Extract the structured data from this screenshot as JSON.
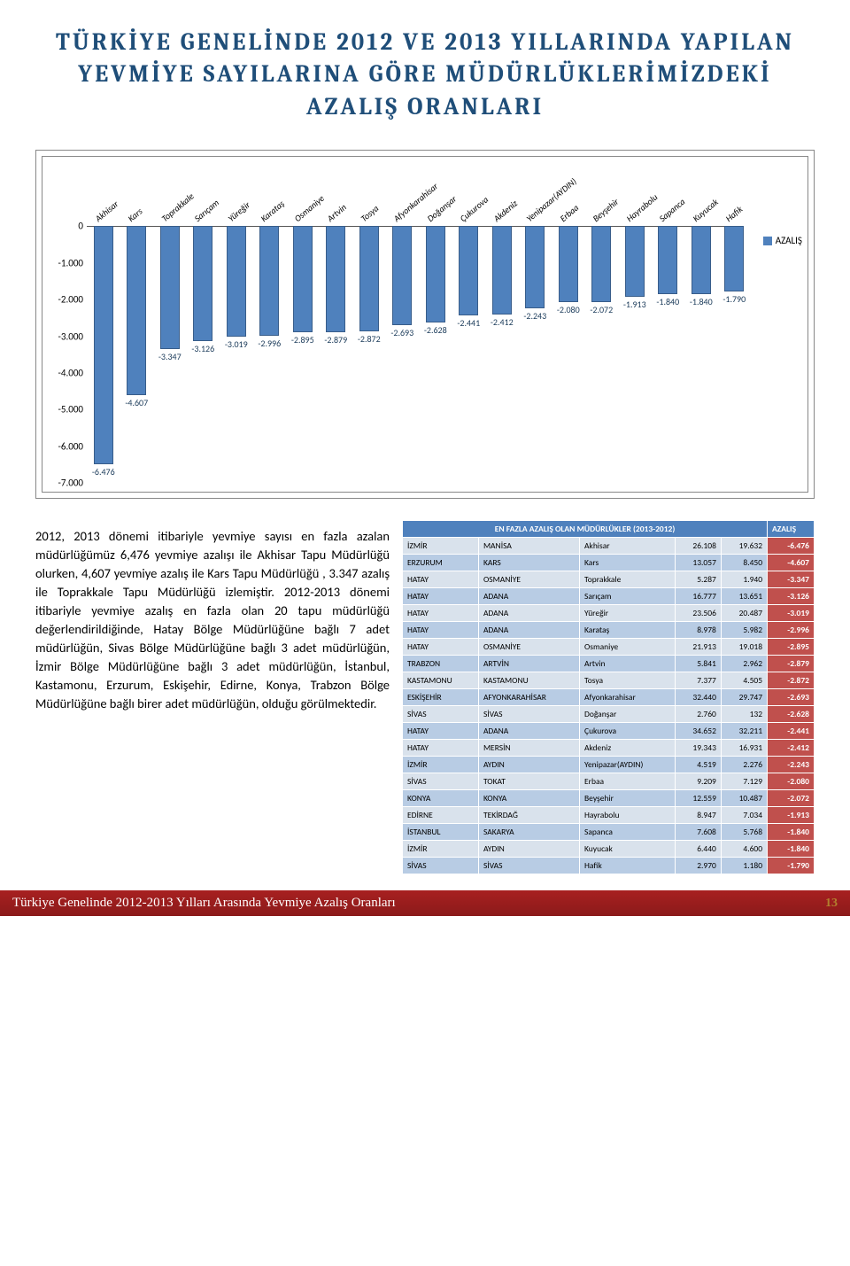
{
  "title": "TÜRKİYE GENELİNDE 2012 VE 2013 YILLARINDA YAPILAN YEVMİYE SAYILARINA GÖRE  MÜDÜRLÜKLERİMİZDEKİ AZALIŞ ORANLARI",
  "chart": {
    "type": "bar",
    "legend_label": "AZALIŞ",
    "bar_color": "#4f81bd",
    "bar_border": "#385d8a",
    "yticks": [
      {
        "v": 0,
        "label": "0"
      },
      {
        "v": -1000,
        "label": "-1.000"
      },
      {
        "v": -2000,
        "label": "-2.000"
      },
      {
        "v": -3000,
        "label": "-3.000"
      },
      {
        "v": -4000,
        "label": "-4.000"
      },
      {
        "v": -5000,
        "label": "-5.000"
      },
      {
        "v": -6000,
        "label": "-6.000"
      },
      {
        "v": -7000,
        "label": "-7.000"
      }
    ],
    "ymin": -7000,
    "categories": [
      "Akhisar",
      "Kars",
      "Toprakkale",
      "Sarıçam",
      "Yüreğir",
      "Karataş",
      "Osmaniye",
      "Artvin",
      "Tosya",
      "Afyonkarahisar",
      "Doğanşar",
      "Çukurova",
      "Akdeniz",
      "Yenipazar(AYDIN)",
      "Erbaa",
      "Beyşehir",
      "Hayrabolu",
      "Sapanca",
      "Kuyucak",
      "Hafik"
    ],
    "values": [
      -6476,
      -4607,
      -3347,
      -3126,
      -3019,
      -2996,
      -2895,
      -2879,
      -2872,
      -2693,
      -2628,
      -2441,
      -2412,
      -2243,
      -2080,
      -2072,
      -1913,
      -1840,
      -1840,
      -1790
    ],
    "value_labels": [
      "-6.476",
      "-4.607",
      "-3.347",
      "-3.126",
      "-3.019",
      "-2.996",
      "-2.895",
      "-2.879",
      "-2.872",
      "-2.693",
      "-2.628",
      "-2.441",
      "-2.412",
      "-2.243",
      "-2.080",
      "-2.072",
      "-1.913",
      "-1.840",
      "-1.840",
      "-1.790"
    ]
  },
  "paragraph": "2012, 2013 dönemi itibariyle yevmiye sayısı  en fazla azalan  müdürlüğümüz 6,476 yevmiye azalışı ile Akhisar  Tapu Müdürlüğü olurken, 4,607 yevmiye azalış ile Kars Tapu Müdürlüğü , 3.347 azalış ile Toprakkale  Tapu Müdürlüğü izlemiştir. 2012-2013 dönemi itibariyle  yevmiye azalış en fazla olan 20 tapu müdürlüğü değerlendirildiğinde, Hatay Bölge Müdürlüğüne bağlı 7 adet müdürlüğün, Sivas  Bölge Müdürlüğüne bağlı 3 adet müdürlüğün, İzmir  Bölge Müdürlüğüne bağlı 3 adet müdürlüğün, İstanbul, Kastamonu, Erzurum, Eskişehir, Edirne, Konya, Trabzon  Bölge Müdürlüğüne bağlı birer adet müdürlüğün, olduğu görülmektedir.",
  "table": {
    "header_wide": "EN FAZLA AZALIŞ OLAN MÜDÜRLÜKLER (2013-2012)",
    "header_azalis": "AZALIŞ",
    "rows": [
      [
        "İZMİR",
        "MANİSA",
        "Akhisar",
        "26.108",
        "19.632",
        "-6.476"
      ],
      [
        "ERZURUM",
        "KARS",
        "Kars",
        "13.057",
        "8.450",
        "-4.607"
      ],
      [
        "HATAY",
        "OSMANİYE",
        "Toprakkale",
        "5.287",
        "1.940",
        "-3.347"
      ],
      [
        "HATAY",
        "ADANA",
        "Sarıçam",
        "16.777",
        "13.651",
        "-3.126"
      ],
      [
        "HATAY",
        "ADANA",
        "Yüreğir",
        "23.506",
        "20.487",
        "-3.019"
      ],
      [
        "HATAY",
        "ADANA",
        "Karataş",
        "8.978",
        "5.982",
        "-2.996"
      ],
      [
        "HATAY",
        "OSMANİYE",
        "Osmaniye",
        "21.913",
        "19.018",
        "-2.895"
      ],
      [
        "TRABZON",
        "ARTVİN",
        "Artvin",
        "5.841",
        "2.962",
        "-2.879"
      ],
      [
        "KASTAMONU",
        "KASTAMONU",
        "Tosya",
        "7.377",
        "4.505",
        "-2.872"
      ],
      [
        "ESKİŞEHİR",
        "AFYONKARAHİSAR",
        "Afyonkarahisar",
        "32.440",
        "29.747",
        "-2.693"
      ],
      [
        "SİVAS",
        "SİVAS",
        "Doğanşar",
        "2.760",
        "132",
        "-2.628"
      ],
      [
        "HATAY",
        "ADANA",
        "Çukurova",
        "34.652",
        "32.211",
        "-2.441"
      ],
      [
        "HATAY",
        "MERSİN",
        "Akdeniz",
        "19.343",
        "16.931",
        "-2.412"
      ],
      [
        "İZMİR",
        "AYDIN",
        "Yenipazar(AYDIN)",
        "4.519",
        "2.276",
        "-2.243"
      ],
      [
        "SİVAS",
        "TOKAT",
        "Erbaa",
        "9.209",
        "7.129",
        "-2.080"
      ],
      [
        "KONYA",
        "KONYA",
        "Beyşehir",
        "12.559",
        "10.487",
        "-2.072"
      ],
      [
        "EDİRNE",
        "TEKİRDAĞ",
        "Hayrabolu",
        "8.947",
        "7.034",
        "-1.913"
      ],
      [
        "İSTANBUL",
        "SAKARYA",
        "Sapanca",
        "7.608",
        "5.768",
        "-1.840"
      ],
      [
        "İZMİR",
        "AYDIN",
        "Kuyucak",
        "6.440",
        "4.600",
        "-1.840"
      ],
      [
        "SİVAS",
        "SİVAS",
        "Hafik",
        "2.970",
        "1.180",
        "-1.790"
      ]
    ]
  },
  "footer": {
    "text": "Türkiye Genelinde  2012-2013 Yılları Arasında  Yevmiye Azalış  Oranları",
    "page": "13"
  }
}
